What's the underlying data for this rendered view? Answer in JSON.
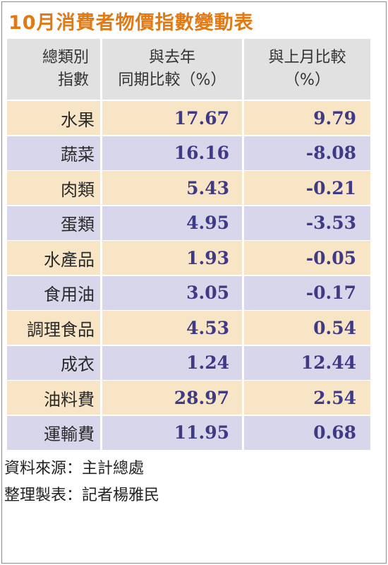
{
  "title": "10月消費者物價指數變動表",
  "table": {
    "headers": {
      "category": [
        "總類別",
        "指數"
      ],
      "yoy": [
        "與去年",
        "同期比較（%）"
      ],
      "mom": [
        "與上月比較",
        "（%）"
      ]
    },
    "rows": [
      {
        "name": "水果",
        "yoy": "17.67",
        "mom": "9.79"
      },
      {
        "name": "蔬菜",
        "yoy": "16.16",
        "mom": "-8.08"
      },
      {
        "name": "肉類",
        "yoy": "5.43",
        "mom": "-0.21"
      },
      {
        "name": "蛋類",
        "yoy": "4.95",
        "mom": "-3.53"
      },
      {
        "name": "水產品",
        "yoy": "1.93",
        "mom": "-0.05"
      },
      {
        "name": "食用油",
        "yoy": "3.05",
        "mom": "-0.17"
      },
      {
        "name": "調理食品",
        "yoy": "4.53",
        "mom": "0.54"
      },
      {
        "name": "成衣",
        "yoy": "1.24",
        "mom": "12.44"
      },
      {
        "name": "油料費",
        "yoy": "28.97",
        "mom": "2.54"
      },
      {
        "name": "運輸費",
        "yoy": "11.95",
        "mom": "0.68"
      }
    ]
  },
  "footer": {
    "source": "資料來源：主計總處",
    "compiler": "整理製表：記者楊雅民"
  },
  "colors": {
    "title": "#e07a16",
    "header_bg": "#e1e1e1",
    "row_odd_bg": "#f7e5c5",
    "row_even_bg": "#d8d6eb",
    "number_text": "#3f3a86"
  }
}
